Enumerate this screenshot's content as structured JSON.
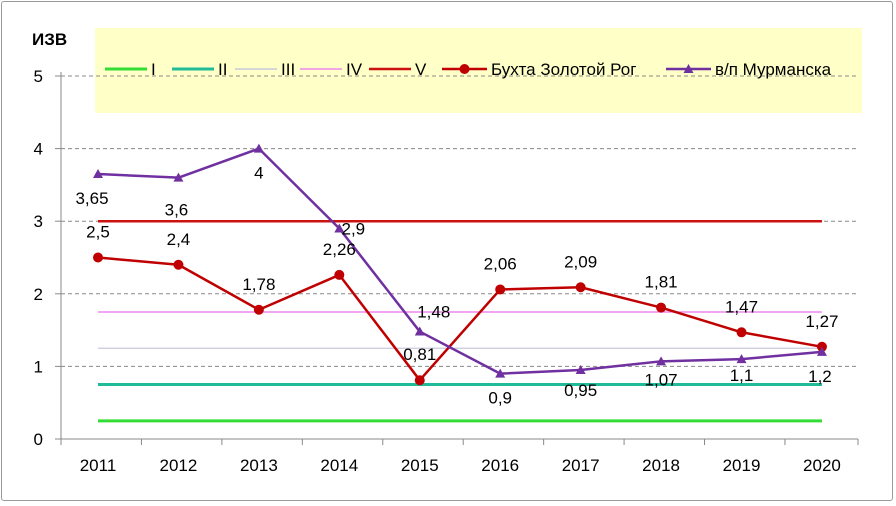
{
  "chart_data": {
    "type": "line",
    "title": "",
    "xlabel": "",
    "ylabel": "ИЗВ",
    "ylim": [
      0,
      5
    ],
    "yticks": [
      0,
      1,
      2,
      3,
      4,
      5
    ],
    "grid": "horizontal dashed",
    "legend_position": "top",
    "categories": [
      "2011",
      "2012",
      "2013",
      "2014",
      "2015",
      "2016",
      "2017",
      "2018",
      "2019",
      "2020"
    ],
    "reference_lines": [
      {
        "name": "I",
        "value": 0.25,
        "color": "#33dd33"
      },
      {
        "name": "II",
        "value": 0.75,
        "color": "#22bb99"
      },
      {
        "name": "III",
        "value": 1.25,
        "color": "#c8c8dc"
      },
      {
        "name": "IV",
        "value": 1.75,
        "color": "#ee88ee"
      },
      {
        "name": "V",
        "value": 3.0,
        "color": "#cc1111"
      }
    ],
    "series": [
      {
        "name": "Бухта Золотой Рог",
        "color": "#c00000",
        "marker": "circle",
        "values": [
          2.5,
          2.4,
          1.78,
          2.26,
          0.81,
          2.06,
          2.09,
          1.81,
          1.47,
          1.27
        ],
        "labels": [
          "2,5",
          "2,4",
          "1,78",
          "2,26",
          "0,81",
          "2,06",
          "2,09",
          "1,81",
          "1,47",
          "1,27"
        ]
      },
      {
        "name": "в/п Мурманска",
        "color": "#7030a0",
        "marker": "triangle",
        "values": [
          3.65,
          3.6,
          4,
          2.9,
          1.48,
          0.9,
          0.95,
          1.07,
          1.1,
          1.2
        ],
        "labels": [
          "3,65",
          "3,6",
          "4",
          "2,9",
          "1,48",
          "0,9",
          "0,95",
          "1,07",
          "1,1",
          "1,2"
        ]
      }
    ],
    "colors": {
      "legend_bg": "#ffffc8",
      "grid": "#888888",
      "axis": "#888888"
    }
  }
}
